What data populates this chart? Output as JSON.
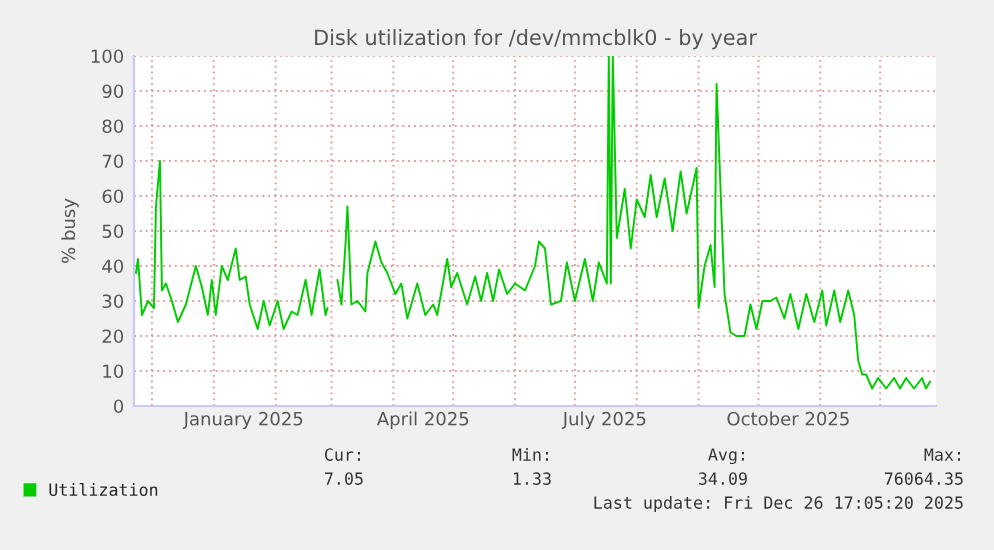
{
  "chart_data": {
    "type": "line",
    "title": "Disk utilization for /dev/mmcblk0 - by year",
    "ylabel": "% busy",
    "x": [
      "2024-11-23",
      "2024-11-24",
      "2024-11-26",
      "2024-11-29",
      "2024-12-02",
      "2024-12-03",
      "2024-12-05",
      "2024-12-06",
      "2024-12-08",
      "2024-12-11",
      "2024-12-14",
      "2024-12-18",
      "2024-12-23",
      "2024-12-26",
      "2024-12-29",
      "2024-12-31",
      "2025-01-02",
      "2025-01-05",
      "2025-01-08",
      "2025-01-12",
      "2025-01-14",
      "2025-01-17",
      "2025-01-19",
      "2025-01-23",
      "2025-01-26",
      "2025-01-29",
      "2025-02-02",
      "2025-02-05",
      "2025-02-09",
      "2025-02-12",
      "2025-02-16",
      "2025-02-19",
      "2025-02-23",
      "2025-02-26",
      "2025-02-27",
      "2025-03-02",
      "2025-03-04",
      "2025-03-06",
      "2025-03-08",
      "2025-03-09",
      "2025-03-11",
      "2025-03-14",
      "2025-03-18",
      "2025-03-19",
      "2025-03-23",
      "2025-03-26",
      "2025-03-29",
      "2025-04-02",
      "2025-04-05",
      "2025-04-08",
      "2025-04-13",
      "2025-04-17",
      "2025-04-21",
      "2025-04-23",
      "2025-04-28",
      "2025-04-30",
      "2025-05-03",
      "2025-05-08",
      "2025-05-12",
      "2025-05-15",
      "2025-05-18",
      "2025-05-21",
      "2025-05-24",
      "2025-05-28",
      "2025-06-01",
      "2025-06-06",
      "2025-06-11",
      "2025-06-13",
      "2025-06-16",
      "2025-06-19",
      "2025-06-24",
      "2025-06-27",
      "2025-07-01",
      "2025-07-06",
      "2025-07-10",
      "2025-07-13",
      "2025-07-17",
      "2025-07-18",
      "2025-07-19",
      "2025-07-20",
      "2025-07-22",
      "2025-07-26",
      "2025-07-29",
      "2025-08-01",
      "2025-08-05",
      "2025-08-08",
      "2025-08-11",
      "2025-08-15",
      "2025-08-19",
      "2025-08-23",
      "2025-08-26",
      "2025-08-31",
      "2025-09-01",
      "2025-09-04",
      "2025-09-07",
      "2025-09-09",
      "2025-09-10",
      "2025-09-14",
      "2025-09-17",
      "2025-09-20",
      "2025-09-24",
      "2025-09-27",
      "2025-09-30",
      "2025-10-03",
      "2025-10-07",
      "2025-10-10",
      "2025-10-14",
      "2025-10-17",
      "2025-10-21",
      "2025-10-25",
      "2025-10-29",
      "2025-11-02",
      "2025-11-04",
      "2025-11-08",
      "2025-11-11",
      "2025-11-15",
      "2025-11-18",
      "2025-11-20",
      "2025-11-22",
      "2025-11-24",
      "2025-11-27",
      "2025-11-30",
      "2025-12-04",
      "2025-12-08",
      "2025-12-11",
      "2025-12-14",
      "2025-12-18",
      "2025-12-22",
      "2025-12-24",
      "2025-12-26"
    ],
    "series": [
      {
        "name": "Utilization",
        "color": "#00cc00",
        "values": [
          38,
          42,
          26,
          30,
          28,
          57,
          70,
          33,
          35,
          30,
          24,
          29,
          40,
          34,
          26,
          36,
          26,
          40,
          36,
          45,
          36,
          37,
          29,
          22,
          30,
          23,
          30,
          22,
          27,
          26,
          36,
          26,
          39,
          26,
          28,
          null,
          36,
          29,
          46,
          57,
          29,
          30,
          27,
          38,
          47,
          41,
          38,
          32,
          35,
          25,
          35,
          26,
          29,
          26,
          42,
          34,
          38,
          29,
          37,
          30,
          38,
          30,
          39,
          32,
          35,
          33,
          40,
          47,
          45,
          29,
          30,
          41,
          30,
          42,
          30,
          41,
          35,
          100,
          35,
          100,
          48,
          62,
          45,
          59,
          54,
          66,
          54,
          65,
          50,
          67,
          55,
          68,
          28,
          40,
          46,
          34,
          92,
          32,
          21,
          20,
          20,
          29,
          22,
          30,
          30,
          31,
          25,
          32,
          22,
          32,
          24,
          33,
          23,
          33,
          24,
          33,
          26,
          13,
          9,
          9,
          5,
          8,
          5,
          8,
          5,
          8,
          5,
          8,
          5,
          7
        ]
      }
    ],
    "xlim": [
      "2024-11-22",
      "2025-12-29"
    ],
    "xticks": [
      {
        "value": "2024-12-01",
        "label": null
      },
      {
        "value": "2025-01-01",
        "label": null
      },
      {
        "value": "2025-01-16",
        "label": "January 2025"
      },
      {
        "value": "2025-02-01",
        "label": null
      },
      {
        "value": "2025-03-01",
        "label": null
      },
      {
        "value": "2025-04-01",
        "label": null
      },
      {
        "value": "2025-04-16",
        "label": "April 2025"
      },
      {
        "value": "2025-05-01",
        "label": null
      },
      {
        "value": "2025-06-01",
        "label": null
      },
      {
        "value": "2025-07-01",
        "label": null
      },
      {
        "value": "2025-07-16",
        "label": "July 2025"
      },
      {
        "value": "2025-08-01",
        "label": null
      },
      {
        "value": "2025-09-01",
        "label": null
      },
      {
        "value": "2025-10-01",
        "label": null
      },
      {
        "value": "2025-10-16",
        "label": "October 2025"
      },
      {
        "value": "2025-11-01",
        "label": null
      },
      {
        "value": "2025-12-01",
        "label": null
      }
    ],
    "ylim": [
      0,
      100
    ],
    "yticks": [
      0,
      10,
      20,
      30,
      40,
      50,
      60,
      70,
      80,
      90,
      100
    ],
    "grid": true,
    "legend": "bottom",
    "annotations": [
      "Cur:",
      "Min:",
      "Avg:",
      "Max:",
      "7.05",
      "1.33",
      "34.09",
      "76064.35",
      "Last update: Fri Dec 26 17:05:20 2025"
    ]
  }
}
